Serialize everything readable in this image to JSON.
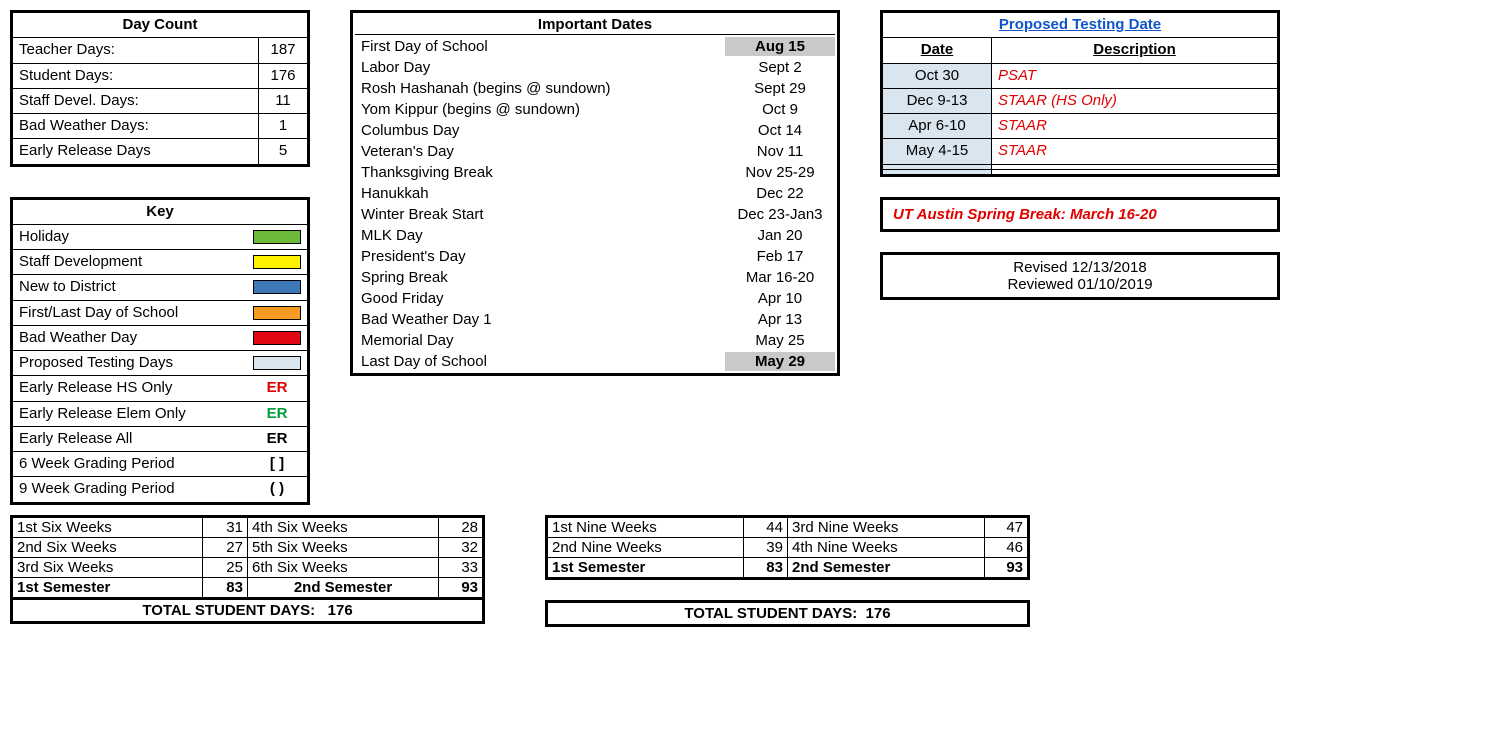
{
  "dayCount": {
    "title": "Day Count",
    "rows": [
      {
        "label": "Teacher Days:",
        "value": "187"
      },
      {
        "label": "Student Days:",
        "value": "176"
      },
      {
        "label": "Staff Devel. Days:",
        "value": "11"
      },
      {
        "label": "Bad Weather Days:",
        "value": "1"
      },
      {
        "label": "Early Release Days",
        "value": "5"
      }
    ]
  },
  "key": {
    "title": "Key",
    "colorRows": [
      {
        "label": "Holiday",
        "color": "#6dba3a"
      },
      {
        "label": "Staff Development",
        "color": "#fff200"
      },
      {
        "label": "New to District",
        "color": "#3e77b5"
      },
      {
        "label": "First/Last Day of School",
        "color": "#f59a23"
      },
      {
        "label": "Bad Weather Day",
        "color": "#e30613"
      },
      {
        "label": "Proposed Testing Days",
        "color": "#d9e5ef"
      }
    ],
    "textRows": [
      {
        "label": "Early Release HS Only",
        "code": "ER",
        "style": "red"
      },
      {
        "label": "Early Release Elem Only",
        "code": "ER",
        "style": "green"
      },
      {
        "label": "Early Release All",
        "code": "ER",
        "style": "bold"
      },
      {
        "label": "6 Week Grading Period",
        "code": "[ ]",
        "style": "bold"
      },
      {
        "label": "9 Week Grading Period",
        "code": "( )",
        "style": "bold"
      }
    ]
  },
  "important": {
    "title": "Important Dates",
    "rows": [
      {
        "label": "First Day of School",
        "date": "Aug 15",
        "em": true
      },
      {
        "label": "Labor Day",
        "date": "Sept 2"
      },
      {
        "label": "Rosh Hashanah (begins @ sundown)",
        "date": "Sept 29"
      },
      {
        "label": "Yom Kippur (begins @ sundown)",
        "date": "Oct 9"
      },
      {
        "label": "Columbus Day",
        "date": "Oct 14"
      },
      {
        "label": "Veteran's Day",
        "date": "Nov 11"
      },
      {
        "label": "Thanksgiving Break",
        "date": "Nov 25-29"
      },
      {
        "label": "Hanukkah",
        "date": "Dec 22"
      },
      {
        "label": "Winter Break Start",
        "date": "Dec 23-Jan3"
      },
      {
        "label": "MLK Day",
        "date": "Jan 20"
      },
      {
        "label": "President's Day",
        "date": "Feb 17"
      },
      {
        "label": "Spring Break",
        "date": "Mar 16-20"
      },
      {
        "label": "Good Friday",
        "date": "Apr 10"
      },
      {
        "label": "Bad Weather Day 1",
        "date": "Apr 13"
      },
      {
        "label": "Memorial Day",
        "date": "May 25"
      },
      {
        "label": "Last Day of School",
        "date": "May 29",
        "em": true
      }
    ]
  },
  "testing": {
    "title": "Proposed Testing Date",
    "head": {
      "date": "Date",
      "desc": "Description"
    },
    "rows": [
      {
        "date": "Oct 30",
        "desc": "PSAT"
      },
      {
        "date": "Dec 9-13",
        "desc": "STAAR (HS Only)"
      },
      {
        "date": "Apr 6-10",
        "desc": "STAAR"
      },
      {
        "date": "May 4-15",
        "desc": "STAAR"
      },
      {
        "date": "",
        "desc": ""
      },
      {
        "date": "",
        "desc": ""
      }
    ],
    "dateBg": "#d9e5ef"
  },
  "note": "UT Austin Spring Break:  March 16-20",
  "revised": "Revised 12/13/2018",
  "reviewed": "Reviewed 01/10/2019",
  "sixWeeks": {
    "left": [
      {
        "label": "1st Six Weeks",
        "value": "31"
      },
      {
        "label": "2nd Six Weeks",
        "value": "27"
      },
      {
        "label": "3rd Six Weeks",
        "value": "25"
      }
    ],
    "right": [
      {
        "label": "4th Six Weeks",
        "value": "28"
      },
      {
        "label": "5th Six Weeks",
        "value": "32"
      },
      {
        "label": "6th Six Weeks",
        "value": "33"
      }
    ],
    "sem1": {
      "label": "1st Semester",
      "value": "83"
    },
    "sem2": {
      "label": "2nd Semester",
      "value": "93"
    },
    "totalLabel": "TOTAL STUDENT DAYS:",
    "totalValue": "176"
  },
  "nineWeeks": {
    "left": [
      {
        "label": "1st Nine Weeks",
        "value": "44"
      },
      {
        "label": "2nd Nine Weeks",
        "value": "39"
      }
    ],
    "right": [
      {
        "label": "3rd Nine Weeks",
        "value": "47"
      },
      {
        "label": "4th Nine Weeks",
        "value": "46"
      }
    ],
    "sem1": {
      "label": "1st Semester",
      "value": "83"
    },
    "sem2": {
      "label": "2nd Semester",
      "value": "93"
    },
    "totalLabel": "TOTAL STUDENT DAYS:",
    "totalValue": "176"
  }
}
